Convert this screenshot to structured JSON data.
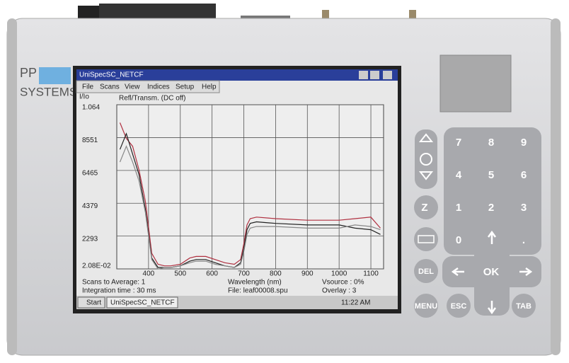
{
  "device": {
    "brand": [
      "PP",
      "SYSTEMS"
    ]
  },
  "window": {
    "title": "UniSpecSC_NETCF",
    "menu": [
      "File",
      "Scans",
      "View",
      "Indices",
      "Setup",
      "Help"
    ]
  },
  "chart_data": {
    "type": "line",
    "y_label": "I/Io",
    "title": "Refl/Transm. (DC off)",
    "x_label": "Wavelength (nm)",
    "x": [
      310,
      330,
      350,
      370,
      390,
      410,
      430,
      450,
      470,
      500,
      530,
      550,
      580,
      610,
      640,
      670,
      690,
      700,
      710,
      720,
      740,
      800,
      900,
      1000,
      1050,
      1100,
      1130
    ],
    "series": [
      {
        "color": "#b03040",
        "values": [
          0.95,
          0.85,
          0.8,
          0.65,
          0.45,
          0.12,
          0.05,
          0.04,
          0.04,
          0.05,
          0.09,
          0.1,
          0.1,
          0.08,
          0.06,
          0.05,
          0.08,
          0.18,
          0.3,
          0.34,
          0.35,
          0.34,
          0.33,
          0.33,
          0.34,
          0.35,
          0.28
        ]
      },
      {
        "color": "#222222",
        "values": [
          0.78,
          0.88,
          0.75,
          0.62,
          0.4,
          0.09,
          0.03,
          0.03,
          0.03,
          0.04,
          0.07,
          0.08,
          0.08,
          0.06,
          0.04,
          0.03,
          0.06,
          0.15,
          0.27,
          0.31,
          0.32,
          0.31,
          0.3,
          0.3,
          0.28,
          0.27,
          0.24
        ]
      },
      {
        "color": "#888888",
        "values": [
          0.7,
          0.8,
          0.7,
          0.58,
          0.38,
          0.08,
          0.02,
          0.03,
          0.03,
          0.04,
          0.06,
          0.07,
          0.07,
          0.05,
          0.04,
          0.03,
          0.05,
          0.13,
          0.24,
          0.28,
          0.29,
          0.29,
          0.28,
          0.28,
          0.3,
          0.29,
          0.27
        ]
      }
    ],
    "xlim": [
      300,
      1140
    ],
    "xticks": [
      400,
      500,
      600,
      700,
      800,
      900,
      1000,
      1100
    ],
    "ylim": [
      0.0208,
      1.064
    ],
    "yticks": [
      {
        "value": 0.0208,
        "label": "2.08E-02"
      },
      {
        "value": 0.2293,
        "label": "2293"
      },
      {
        "value": 0.4379,
        "label": "4379"
      },
      {
        "value": 0.6465,
        "label": "6465"
      },
      {
        "value": 0.8551,
        "label": "8551"
      },
      1.064
    ],
    "grid": true
  },
  "status": {
    "scans": "Scans to Average: 1",
    "integration": "Integration time : 30 ms",
    "file": "File: leaf00008.spu",
    "vsource": "Vsource : 0%",
    "overlay": "Overlay : 3"
  },
  "taskbar": {
    "start": "Start",
    "app": "UniSpecSC_NETCF",
    "clock": "11:22 AM"
  },
  "keypad": {
    "digits": [
      "7",
      "8",
      "9",
      "4",
      "5",
      "6",
      "1",
      "2",
      "3",
      "0",
      "."
    ],
    "ok": "OK",
    "sleep": "Z",
    "del": "DEL",
    "menu": "MENU",
    "esc": "ESC",
    "tab": "TAB"
  }
}
